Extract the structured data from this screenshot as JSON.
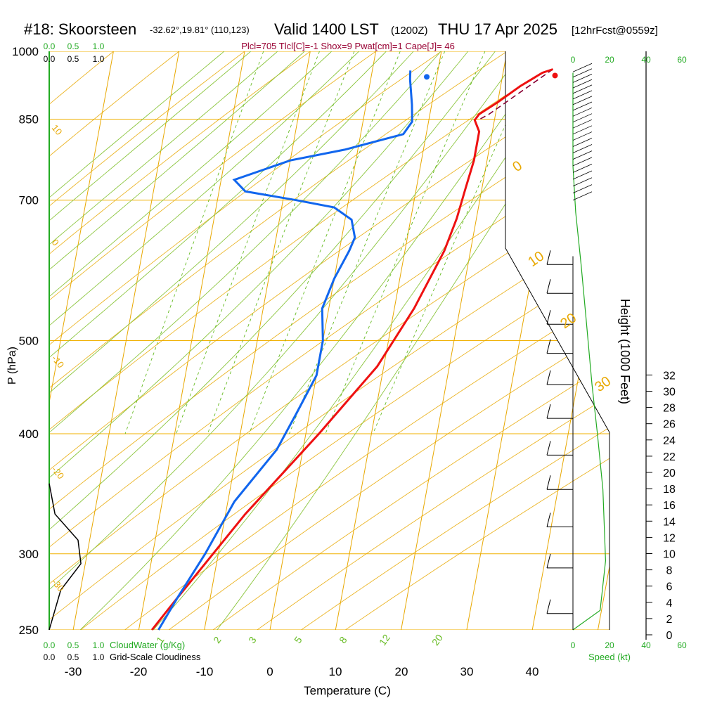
{
  "header": {
    "station": "#18: Skoorsteen",
    "coords": "-32.62°,19.81° (110,123)",
    "valid": "Valid 1400 LST",
    "zulu": "(1200Z)",
    "date": "THU 17 Apr 2025",
    "forecast": "[12hrFcst@0559z]"
  },
  "indices": "Plcl=705 Tlcl[C]=-1 Shox=9 Pwat[cm]=1 Cape[J]= 46",
  "colors": {
    "temperature": "#ee1111",
    "dewpoint": "#1166ee",
    "isotherm": "#e8a800",
    "dry_adiabat": "#8cc63f",
    "mixing_ratio": "#66bb22",
    "isobar": "#f0b000",
    "green_label": "#22aa22",
    "indices_text": "#990033",
    "parcel": "#880033"
  },
  "chart_data": {
    "type": "line",
    "chart_kind": "skew-t log-p",
    "title": "#18: Skoorsteen",
    "xlabel": "Temperature (C)",
    "ylabel": "P (hPa)",
    "y2label": "Height (1000 Feet)",
    "x_ticks": [
      "-30",
      "-20",
      "-10",
      "0",
      "10",
      "20",
      "30",
      "40"
    ],
    "y_ticks": [
      "250",
      "300",
      "400",
      "500",
      "700",
      "850",
      "1000"
    ],
    "y2_ticks": [
      "0",
      "2",
      "4",
      "6",
      "8",
      "10",
      "12",
      "14",
      "16",
      "18",
      "20",
      "22",
      "24",
      "26",
      "28",
      "30",
      "32"
    ],
    "xlim": [
      -34,
      47
    ],
    "ylim_hpa": [
      1000,
      250
    ],
    "isotherm_labels": [
      "0",
      "10",
      "20",
      "30"
    ],
    "theta_labels": [
      "10",
      "0",
      "-10",
      "-20",
      "-30"
    ],
    "mixing_ratio_labels": [
      "1",
      "2",
      "3",
      "5",
      "8",
      "12",
      "20"
    ],
    "cloud_water_ticks": [
      "0.0",
      "0.5",
      "1.0"
    ],
    "cloudiness_ticks": [
      "0.0",
      "0.5",
      "1.0"
    ],
    "speed_ticks": [
      "0",
      "20",
      "40",
      "60"
    ],
    "cloud_water_label": "CloudWater (g/Kg)",
    "cloudiness_label": "Grid-Scale Cloudiness",
    "speed_label": "Speed (kt)",
    "series": [
      {
        "name": "temperature",
        "points": [
          [
            27.5,
            958
          ],
          [
            26,
            950
          ],
          [
            23,
            920
          ],
          [
            20,
            885
          ],
          [
            17.5,
            860
          ],
          [
            17,
            848
          ],
          [
            18,
            825
          ],
          [
            18,
            770
          ],
          [
            17.5,
            720
          ],
          [
            17,
            670
          ],
          [
            16,
            620
          ],
          [
            13,
            540
          ],
          [
            9,
            470
          ],
          [
            2,
            400
          ],
          [
            -7,
            330
          ],
          [
            -15,
            270
          ],
          [
            -18,
            250
          ]
        ]
      },
      {
        "name": "dewpoint",
        "points": [
          [
            5.8,
            955
          ],
          [
            6,
            935
          ],
          [
            7,
            880
          ],
          [
            7.5,
            845
          ],
          [
            6.5,
            820
          ],
          [
            -2,
            790
          ],
          [
            -10,
            770
          ],
          [
            -18,
            735
          ],
          [
            -16,
            715
          ],
          [
            -8,
            700
          ],
          [
            -2,
            688
          ],
          [
            1,
            668
          ],
          [
            2,
            640
          ],
          [
            1.5,
            620
          ],
          [
            0,
            580
          ],
          [
            -1,
            540
          ],
          [
            0,
            500
          ],
          [
            0,
            460
          ],
          [
            -2,
            420
          ],
          [
            -4,
            385
          ],
          [
            -9,
            340
          ],
          [
            -12,
            300
          ],
          [
            -15,
            270
          ],
          [
            -17,
            250
          ]
        ]
      },
      {
        "name": "parcel",
        "points": [
          [
            27.5,
            958
          ],
          [
            19,
            860
          ],
          [
            17.5,
            848
          ]
        ]
      },
      {
        "name": "cloudiness",
        "points": [
          [
            0.0,
            250
          ],
          [
            0.2,
            275
          ],
          [
            0.55,
            293
          ],
          [
            0.5,
            310
          ],
          [
            0.1,
            330
          ],
          [
            0.0,
            355
          ]
        ]
      },
      {
        "name": "wind_speed_kt",
        "points": [
          [
            0,
            250
          ],
          [
            10,
            262
          ],
          [
            12,
            295
          ],
          [
            11,
            350
          ],
          [
            9,
            400
          ],
          [
            7,
            450
          ],
          [
            5,
            520
          ],
          [
            3,
            600
          ],
          [
            1,
            680
          ],
          [
            0,
            760
          ],
          [
            0,
            840
          ],
          [
            0,
            950
          ]
        ]
      }
    ]
  }
}
